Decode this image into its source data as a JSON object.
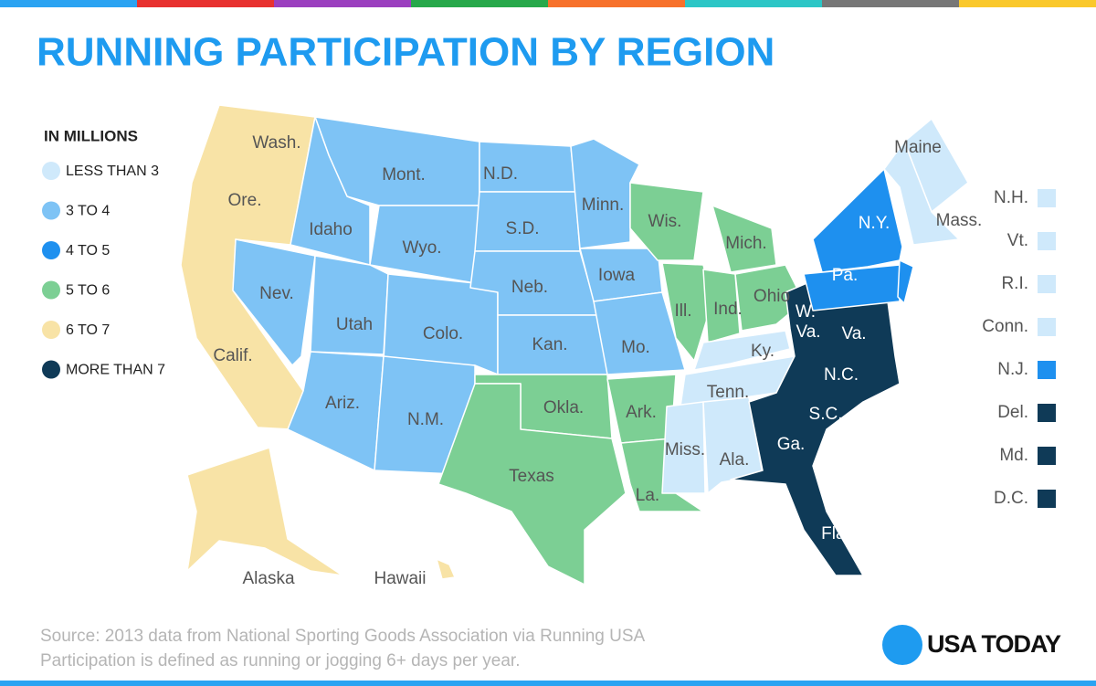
{
  "header": {
    "title": "RUNNING PARTICIPATION BY REGION"
  },
  "legend": {
    "title": "IN MILLIONS",
    "items": [
      {
        "label": "LESS THAN 3",
        "color": "#cfe9fb"
      },
      {
        "label": "3 TO 4",
        "color": "#7ec3f5"
      },
      {
        "label": "4 TO 5",
        "color": "#1e90ef"
      },
      {
        "label": "5 TO 6",
        "color": "#7ccf94"
      },
      {
        "label": "6 TO 7",
        "color": "#f8e3a6"
      },
      {
        "label": "MORE THAN 7",
        "color": "#0f3a57"
      }
    ]
  },
  "map": {
    "labels": [
      "Wash.",
      "Ore.",
      "Calif.",
      "Idaho",
      "Mont.",
      "Wyo.",
      "Nev.",
      "Utah",
      "Colo.",
      "Ariz.",
      "N.M.",
      "N.D.",
      "S.D.",
      "Neb.",
      "Kan.",
      "Minn.",
      "Iowa",
      "Mo.",
      "Wis.",
      "Mich.",
      "Ill.",
      "Ind.",
      "Ohio",
      "Okla.",
      "Ark.",
      "Texas",
      "La.",
      "Ky.",
      "Tenn.",
      "Miss.",
      "Ala.",
      "Ga.",
      "S.C.",
      "N.C.",
      "W.",
      "Va.",
      "Va.",
      "Fla.",
      "N.Y.",
      "Pa.",
      "Maine",
      "Mass.",
      "Alaska",
      "Hawaii"
    ],
    "small_states": [
      {
        "label": "N.H.",
        "color": "#cfe9fb"
      },
      {
        "label": "Vt.",
        "color": "#cfe9fb"
      },
      {
        "label": "R.I.",
        "color": "#cfe9fb"
      },
      {
        "label": "Conn.",
        "color": "#cfe9fb"
      },
      {
        "label": "N.J.",
        "color": "#1e90ef"
      },
      {
        "label": "Del.",
        "color": "#0f3a57"
      },
      {
        "label": "Md.",
        "color": "#0f3a57"
      },
      {
        "label": "D.C.",
        "color": "#0f3a57"
      }
    ]
  },
  "footer": {
    "source": "Source: 2013 data from National Sporting Goods Association via Running USA",
    "note": "Participation is defined as running or jogging 6+ days per year.",
    "brand": "USA TODAY"
  }
}
